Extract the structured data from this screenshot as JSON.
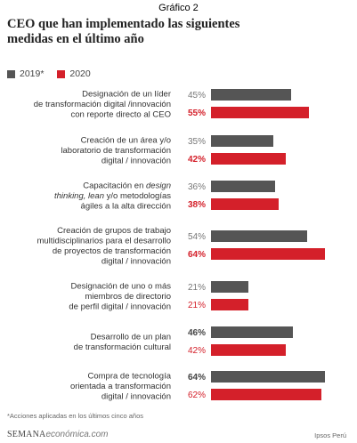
{
  "header": {
    "grafico": "Gráfico 2",
    "title_line1": "CEO que han implementado las siguientes",
    "title_line2": "medidas en el último año"
  },
  "colors": {
    "series_2019": "#555555",
    "series_2020": "#d4202a",
    "value_2019_text": "#777777"
  },
  "chart_data": {
    "type": "bar",
    "orientation": "horizontal",
    "value_unit": "%",
    "legend_position": "top-left",
    "series": [
      {
        "name": "2019*",
        "values": [
          45,
          35,
          36,
          54,
          21,
          46,
          64
        ]
      },
      {
        "name": "2020",
        "values": [
          55,
          42,
          38,
          64,
          21,
          42,
          62
        ]
      }
    ],
    "value_labels": {
      "2019": [
        "45%",
        "35%",
        "36%",
        "54%",
        "21%",
        "46%",
        "64%"
      ],
      "2020": [
        "55%",
        "42%",
        "38%",
        "64%",
        "21%",
        "42%",
        "62%"
      ]
    },
    "bold_2019": [
      false,
      false,
      false,
      false,
      false,
      true,
      true
    ],
    "bold_2020": [
      true,
      true,
      true,
      true,
      false,
      false,
      false
    ],
    "categories": [
      [
        "Designación de un líder",
        "de transformación digital /innovación",
        "con reporte directo al CEO"
      ],
      [
        "Creación de un área y/o",
        "laboratorio de transformación",
        "digital / innovación"
      ],
      [
        "Capacitación en design",
        "thinking, lean y/o metodologías",
        "ágiles a la alta dirección"
      ],
      [
        "Creación de grupos de trabajo",
        "multidisciplinarios para el desarrollo",
        "de proyectos de transformación",
        "digital / innovación"
      ],
      [
        "Designación de uno o más",
        "miembros de directorio",
        "de perfil digital / innovación"
      ],
      [
        "Desarrollo de un plan",
        "de transformación cultural"
      ],
      [
        "Compra de tecnología",
        "orientada a transformación",
        "digital / innovación"
      ]
    ]
  },
  "footnote": "*Acciones aplicadas en los últimos cinco años",
  "footer": {
    "brand_semana": "SEMANA",
    "brand_economica": "económica.com",
    "source": "Ipsos Perú"
  }
}
